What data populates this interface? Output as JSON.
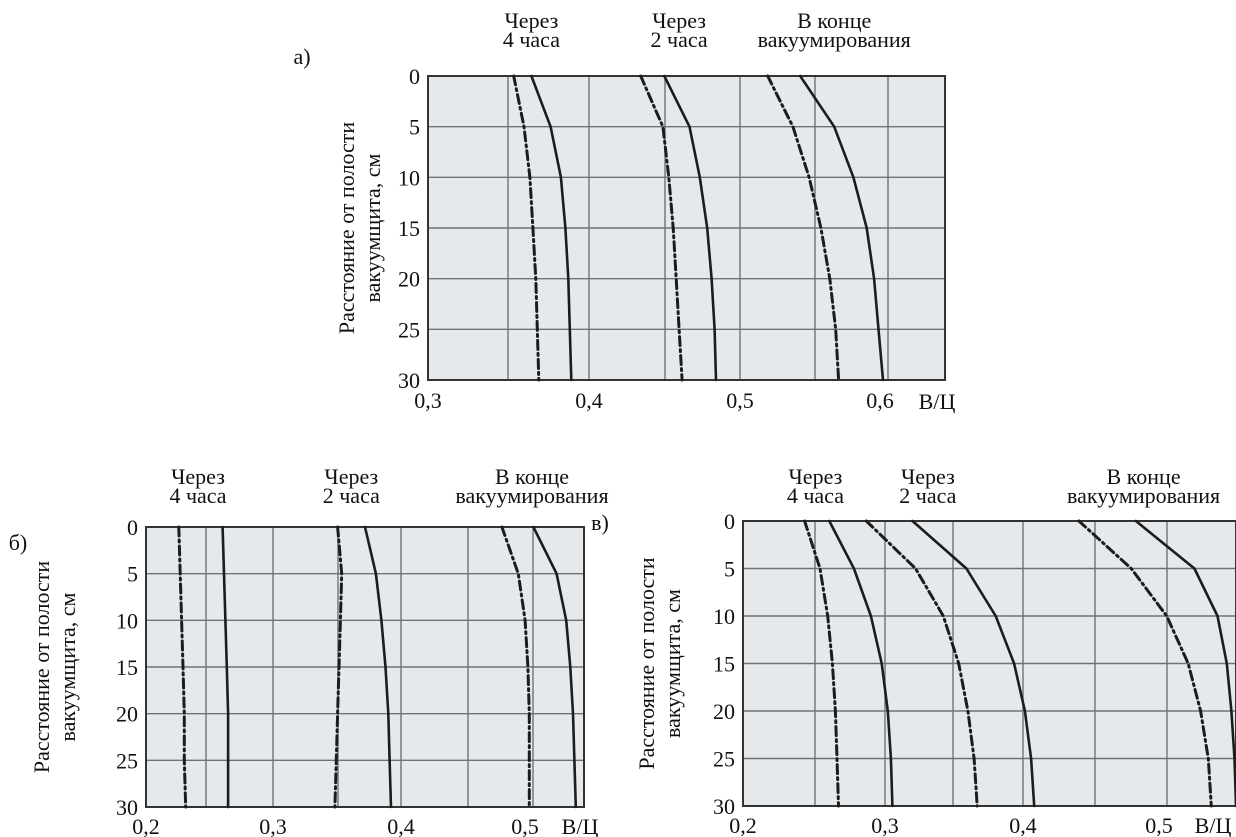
{
  "figure": {
    "line_color": "#1c1c1c",
    "grid_color": "#6f7275",
    "plot_bg": "#e6e9ec"
  },
  "chart_data": [
    {
      "type": "line",
      "panel_label": "а)",
      "ylabel": [
        "Расстояние от полости",
        "вакуумщита, см"
      ],
      "xlabel": "В/Ц",
      "xlim": [
        0.3,
        0.65
      ],
      "ylim": [
        0,
        30
      ],
      "y_inverted": true,
      "x_ticks": [
        "0,3",
        "0,4",
        "0,5",
        "0,6"
      ],
      "y_ticks": [
        "0",
        "5",
        "10",
        "15",
        "20",
        "25",
        "30"
      ],
      "grid": true,
      "annotations": [
        {
          "lines": [
            "Через",
            "4 часа"
          ],
          "x": 0.37
        },
        {
          "lines": [
            "Через",
            "2 часа"
          ],
          "x": 0.47
        },
        {
          "lines": [
            "В конце",
            "вакуумирования"
          ],
          "x": 0.575
        }
      ],
      "series": [
        {
          "style": "solid",
          "y": [
            0,
            5,
            10,
            15,
            20,
            25,
            30
          ],
          "x": [
            0.37,
            0.383,
            0.39,
            0.393,
            0.395,
            0.396,
            0.397
          ]
        },
        {
          "style": "dashdot",
          "y": [
            0,
            5,
            10,
            15,
            20,
            25,
            30
          ],
          "x": [
            0.358,
            0.365,
            0.369,
            0.371,
            0.373,
            0.374,
            0.375
          ]
        },
        {
          "style": "solid",
          "y": [
            0,
            5,
            10,
            15,
            20,
            25,
            30
          ],
          "x": [
            0.46,
            0.477,
            0.484,
            0.489,
            0.492,
            0.494,
            0.495
          ]
        },
        {
          "style": "dashdot",
          "y": [
            0,
            5,
            10,
            15,
            20,
            25,
            30
          ],
          "x": [
            0.444,
            0.459,
            0.463,
            0.466,
            0.468,
            0.47,
            0.472
          ]
        },
        {
          "style": "solid",
          "y": [
            0,
            5,
            10,
            15,
            20,
            25,
            30
          ],
          "x": [
            0.552,
            0.575,
            0.588,
            0.597,
            0.602,
            0.605,
            0.608
          ]
        },
        {
          "style": "dashdot",
          "y": [
            0,
            5,
            10,
            15,
            20,
            25,
            30
          ],
          "x": [
            0.53,
            0.547,
            0.558,
            0.566,
            0.572,
            0.576,
            0.578
          ]
        }
      ]
    },
    {
      "type": "line",
      "panel_label": "б)",
      "ylabel": [
        "Расстояние от полости",
        "вакуумщита, см"
      ],
      "xlabel": "В/Ц",
      "xlim": [
        0.2,
        0.52
      ],
      "ylim": [
        0,
        30
      ],
      "y_inverted": true,
      "x_ticks": [
        "0,2",
        "0,3",
        "0,4",
        "0,5"
      ],
      "y_ticks": [
        "0",
        "5",
        "10",
        "15",
        "20",
        "25",
        "30"
      ],
      "grid": true,
      "annotations": [
        {
          "lines": [
            "Через",
            "4 часа"
          ],
          "x": 0.238
        },
        {
          "lines": [
            "Через",
            "2 часа"
          ],
          "x": 0.35
        },
        {
          "lines": [
            "В конце",
            "вакуумирования"
          ],
          "x": 0.482
        }
      ],
      "series": [
        {
          "style": "solid",
          "y": [
            0,
            5,
            10,
            15,
            20,
            25,
            30
          ],
          "x": [
            0.256,
            0.257,
            0.258,
            0.259,
            0.26,
            0.26,
            0.26
          ]
        },
        {
          "style": "dashdot",
          "y": [
            0,
            5,
            10,
            15,
            20,
            25,
            30
          ],
          "x": [
            0.224,
            0.225,
            0.226,
            0.227,
            0.228,
            0.228,
            0.229
          ]
        },
        {
          "style": "solid",
          "y": [
            0,
            5,
            10,
            15,
            20,
            25,
            30
          ],
          "x": [
            0.36,
            0.368,
            0.372,
            0.375,
            0.377,
            0.378,
            0.379
          ]
        },
        {
          "style": "dashdot",
          "y": [
            0,
            5,
            10,
            15,
            20,
            25,
            30
          ],
          "x": [
            0.34,
            0.343,
            0.342,
            0.341,
            0.34,
            0.339,
            0.338
          ]
        },
        {
          "style": "solid",
          "y": [
            0,
            5,
            10,
            15,
            20,
            25,
            30
          ],
          "x": [
            0.483,
            0.5,
            0.507,
            0.51,
            0.512,
            0.513,
            0.514
          ]
        },
        {
          "style": "dashdot",
          "y": [
            0,
            5,
            10,
            15,
            20,
            25,
            30
          ],
          "x": [
            0.46,
            0.472,
            0.477,
            0.479,
            0.48,
            0.48,
            0.48
          ]
        }
      ]
    },
    {
      "type": "line",
      "panel_label": "в)",
      "ylabel": [
        "Расстояние от полости",
        "вакуумщита, см"
      ],
      "xlabel": "В/Ц",
      "xlim": [
        0.2,
        0.52
      ],
      "ylim": [
        0,
        30
      ],
      "y_inverted": true,
      "x_ticks": [
        "0,2",
        "0,3",
        "0,4",
        "0,5"
      ],
      "y_ticks": [
        "0",
        "5",
        "10",
        "15",
        "20",
        "25",
        "30"
      ],
      "grid": true,
      "annotations": [
        {
          "lines": [
            "Через",
            "4 часа"
          ],
          "x": 0.247
        },
        {
          "lines": [
            "Через",
            "2 часа"
          ],
          "x": 0.32
        },
        {
          "lines": [
            "В конце",
            "вакуумирования"
          ],
          "x": 0.46
        }
      ],
      "series": [
        {
          "style": "solid",
          "y": [
            0,
            5,
            10,
            15,
            20,
            25,
            30
          ],
          "x": [
            0.256,
            0.272,
            0.283,
            0.29,
            0.294,
            0.296,
            0.297
          ]
        },
        {
          "style": "dashdot",
          "y": [
            0,
            5,
            10,
            15,
            20,
            25,
            30
          ],
          "x": [
            0.24,
            0.25,
            0.255,
            0.258,
            0.26,
            0.261,
            0.262
          ]
        },
        {
          "style": "solid",
          "y": [
            0,
            5,
            10,
            15,
            20,
            25,
            30
          ],
          "x": [
            0.31,
            0.345,
            0.364,
            0.376,
            0.383,
            0.387,
            0.389
          ]
        },
        {
          "style": "dashdot",
          "y": [
            0,
            5,
            10,
            15,
            20,
            25,
            30
          ],
          "x": [
            0.28,
            0.312,
            0.33,
            0.34,
            0.346,
            0.35,
            0.352
          ]
        },
        {
          "style": "solid",
          "y": [
            0,
            5,
            10,
            15,
            20,
            25,
            30
          ],
          "x": [
            0.455,
            0.493,
            0.508,
            0.514,
            0.517,
            0.519,
            0.52
          ]
        },
        {
          "style": "dashdot",
          "y": [
            0,
            5,
            10,
            15,
            20,
            25,
            30
          ],
          "x": [
            0.418,
            0.452,
            0.475,
            0.489,
            0.497,
            0.502,
            0.504
          ]
        }
      ]
    }
  ]
}
